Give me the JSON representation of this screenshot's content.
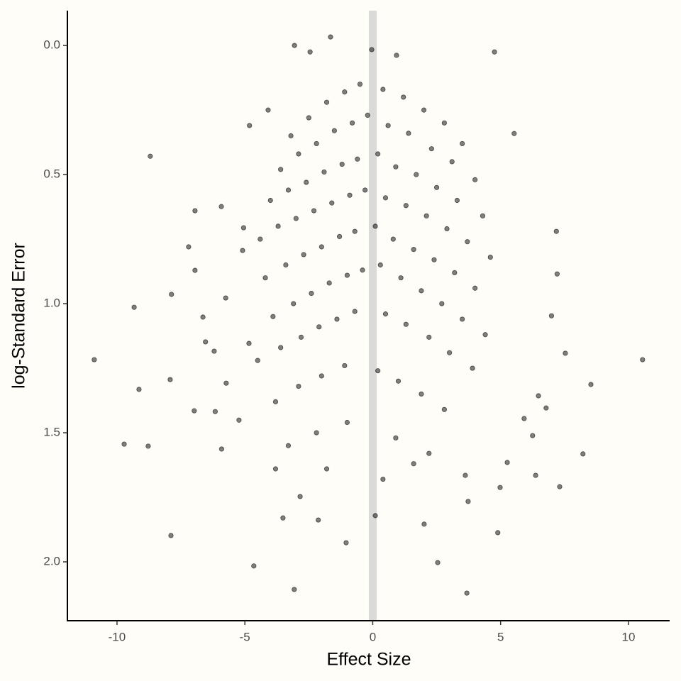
{
  "chart_data": {
    "type": "scatter",
    "xlabel": "Effect Size",
    "ylabel": "log-Standard Error",
    "xlim": [
      -11.94,
      11.61
    ],
    "ylim": [
      2.228,
      -0.135
    ],
    "xticks": [
      -10,
      -5,
      0,
      5,
      10
    ],
    "yticks": [
      {
        "value": 0,
        "label": "0.0"
      },
      0.5,
      {
        "value": 1,
        "label": "1.0"
      },
      1.5,
      {
        "value": 2,
        "label": "2.0"
      }
    ],
    "vline": 0,
    "vline_color": "#d3d3d3",
    "color": "#000000",
    "x": [
      -10.89,
      10.55,
      -8.7,
      -1.65,
      4.76,
      -9.72,
      -8.78,
      -9.14,
      -9.33,
      -7.89,
      -7.92,
      -7.87,
      -6.98,
      -6.95,
      -6.95,
      -5.92,
      -7.2,
      -4.65,
      -3.07,
      3.68,
      2.54,
      8.53,
      8.22,
      7.31,
      7.53,
      4.89,
      2.01,
      0.1,
      -1.04,
      -3.51,
      -2.13,
      -2.84,
      5.53,
      7.18,
      7.21,
      6.99,
      -3.06,
      -2.45,
      0.93,
      -0.04,
      6.48,
      6.78,
      3.62,
      3.73,
      6.37,
      5.26,
      4.98,
      6.25,
      5.92,
      -6.54,
      -6.2,
      -6.16,
      -5.91,
      -5.73,
      -4.84,
      -5.23,
      -5.09,
      -5.05,
      -4.82,
      -4.09,
      -6.64,
      -5.75,
      -3.2,
      -2.5,
      -1.8,
      -1.1,
      -0.5,
      0.4,
      1.2,
      2.0,
      2.8,
      3.5,
      -3.6,
      -2.9,
      -2.2,
      -1.5,
      -0.8,
      -0.2,
      0.6,
      1.4,
      2.3,
      3.1,
      4.0,
      -4.0,
      -3.3,
      -2.6,
      -1.9,
      -1.2,
      -0.6,
      0.2,
      0.9,
      1.7,
      2.5,
      3.3,
      4.3,
      -4.4,
      -3.7,
      -3.0,
      -2.3,
      -1.6,
      -0.9,
      -0.3,
      0.5,
      1.3,
      2.1,
      2.9,
      3.7,
      4.6,
      -4.2,
      -3.4,
      -2.7,
      -2.0,
      -1.3,
      -0.7,
      0.1,
      0.8,
      1.6,
      2.4,
      3.2,
      4.0,
      -3.9,
      -3.1,
      -2.4,
      -1.7,
      -1.0,
      -0.4,
      0.3,
      1.1,
      1.9,
      2.7,
      3.5,
      4.4,
      -4.5,
      -3.6,
      -2.8,
      -2.1,
      -1.4,
      -0.7,
      0.5,
      1.3,
      2.2,
      3.0,
      3.9,
      -3.8,
      -2.9,
      -2.0,
      -1.1,
      0.2,
      1.0,
      1.9,
      2.8,
      -3.3,
      -2.2,
      -1.0,
      0.9,
      2.2,
      -1.8,
      0.4,
      -3.8,
      1.6
    ],
    "values": [
      1.217,
      1.217,
      0.429,
      -0.033,
      0.025,
      1.544,
      1.552,
      1.332,
      1.014,
      1.898,
      1.294,
      0.964,
      1.415,
      0.871,
      0.64,
      0.624,
      0.78,
      2.016,
      2.107,
      2.121,
      2.003,
      1.313,
      1.582,
      1.709,
      1.192,
      1.887,
      1.854,
      1.821,
      1.926,
      1.83,
      1.838,
      1.747,
      0.341,
      0.72,
      0.885,
      1.047,
      0,
      0.025,
      0.038,
      0.016,
      1.357,
      1.404,
      1.665,
      1.766,
      1.665,
      1.615,
      1.712,
      1.511,
      1.445,
      1.148,
      1.184,
      1.418,
      1.563,
      1.308,
      1.154,
      1.451,
      0.794,
      0.706,
      0.31,
      0.25,
      1.052,
      0.978,
      0.35,
      0.28,
      0.22,
      0.18,
      0.15,
      0.17,
      0.2,
      0.25,
      0.3,
      0.38,
      0.48,
      0.42,
      0.38,
      0.33,
      0.3,
      0.27,
      0.31,
      0.34,
      0.4,
      0.45,
      0.52,
      0.6,
      0.56,
      0.53,
      0.49,
      0.46,
      0.44,
      0.42,
      0.47,
      0.5,
      0.55,
      0.6,
      0.66,
      0.75,
      0.7,
      0.67,
      0.64,
      0.61,
      0.58,
      0.56,
      0.59,
      0.62,
      0.66,
      0.71,
      0.76,
      0.82,
      0.9,
      0.85,
      0.81,
      0.78,
      0.74,
      0.72,
      0.7,
      0.75,
      0.79,
      0.83,
      0.88,
      0.94,
      1.05,
      1.0,
      0.96,
      0.92,
      0.89,
      0.87,
      0.85,
      0.9,
      0.95,
      1.0,
      1.06,
      1.12,
      1.22,
      1.17,
      1.13,
      1.09,
      1.06,
      1.03,
      1.04,
      1.08,
      1.13,
      1.19,
      1.25,
      1.38,
      1.32,
      1.28,
      1.24,
      1.26,
      1.3,
      1.35,
      1.41,
      1.55,
      1.5,
      1.46,
      1.52,
      1.58,
      1.64,
      1.68,
      1.64,
      1.62
    ]
  }
}
